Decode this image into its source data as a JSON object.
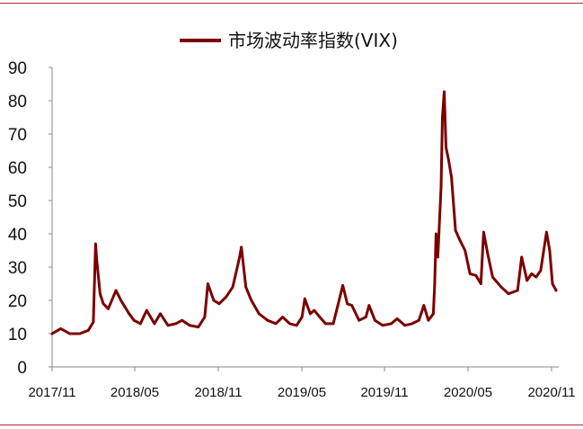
{
  "chart_data": {
    "type": "line",
    "legend_position": "top-center",
    "grid": false,
    "ylim": [
      0,
      90
    ],
    "y_ticks": [
      "0",
      "10",
      "20",
      "30",
      "40",
      "50",
      "60",
      "70",
      "80",
      "90"
    ],
    "x_ticks": [
      "2017/11",
      "2018/05",
      "2018/11",
      "2019/05",
      "2019/11",
      "2020/05",
      "2020/11"
    ],
    "series": [
      {
        "name": "市场波动率指数(VIX)",
        "color": "#7b0000",
        "x": [
          "2017-11-01",
          "2017-11-20",
          "2017-12-10",
          "2018-01-01",
          "2018-01-20",
          "2018-01-31",
          "2018-02-05",
          "2018-02-07",
          "2018-02-15",
          "2018-02-22",
          "2018-03-05",
          "2018-03-22",
          "2018-04-02",
          "2018-04-20",
          "2018-05-01",
          "2018-05-15",
          "2018-05-29",
          "2018-06-15",
          "2018-06-28",
          "2018-07-15",
          "2018-08-01",
          "2018-08-15",
          "2018-09-01",
          "2018-09-20",
          "2018-10-04",
          "2018-10-11",
          "2018-10-24",
          "2018-11-05",
          "2018-11-20",
          "2018-12-05",
          "2018-12-20",
          "2018-12-24",
          "2019-01-03",
          "2019-01-15",
          "2019-02-01",
          "2019-02-20",
          "2019-03-10",
          "2019-03-25",
          "2019-04-10",
          "2019-04-25",
          "2019-05-07",
          "2019-05-13",
          "2019-05-25",
          "2019-06-03",
          "2019-06-15",
          "2019-06-28",
          "2019-07-15",
          "2019-08-05",
          "2019-08-15",
          "2019-08-25",
          "2019-09-10",
          "2019-09-25",
          "2019-10-02",
          "2019-10-15",
          "2019-11-01",
          "2019-11-20",
          "2019-12-03",
          "2019-12-20",
          "2020-01-05",
          "2020-01-20",
          "2020-01-31",
          "2020-02-10",
          "2020-02-21",
          "2020-02-24",
          "2020-02-27",
          "2020-03-02",
          "2020-03-09",
          "2020-03-12",
          "2020-03-16",
          "2020-03-20",
          "2020-03-26",
          "2020-04-01",
          "2020-04-10",
          "2020-04-20",
          "2020-05-01",
          "2020-05-12",
          "2020-05-25",
          "2020-06-05",
          "2020-06-11",
          "2020-06-20",
          "2020-07-01",
          "2020-07-20",
          "2020-08-05",
          "2020-08-25",
          "2020-09-03",
          "2020-09-15",
          "2020-09-25",
          "2020-10-05",
          "2020-10-15",
          "2020-10-28",
          "2020-11-04",
          "2020-11-10",
          "2020-11-18"
        ],
        "values": [
          10,
          11.5,
          10,
          10,
          11,
          13.5,
          37,
          33,
          22,
          19,
          17.5,
          23,
          20,
          16,
          14,
          13,
          17,
          13,
          16,
          12.5,
          13,
          14,
          12.5,
          12,
          15,
          25,
          20,
          19,
          21,
          24,
          33,
          36,
          24,
          20,
          16,
          14,
          13,
          15,
          13,
          12.5,
          15,
          20.5,
          16,
          17,
          15,
          13,
          13,
          24.5,
          19,
          18.5,
          14,
          15,
          18.5,
          14,
          12.5,
          13,
          14.5,
          12.5,
          13,
          14,
          18.5,
          14,
          16,
          25,
          40,
          33,
          54,
          75,
          82.7,
          66,
          62,
          57,
          41,
          38,
          35,
          28,
          27.5,
          25,
          40.5,
          34,
          27,
          24,
          22,
          23,
          33,
          26,
          28,
          27,
          29,
          40.5,
          35,
          25,
          23
        ]
      }
    ]
  }
}
